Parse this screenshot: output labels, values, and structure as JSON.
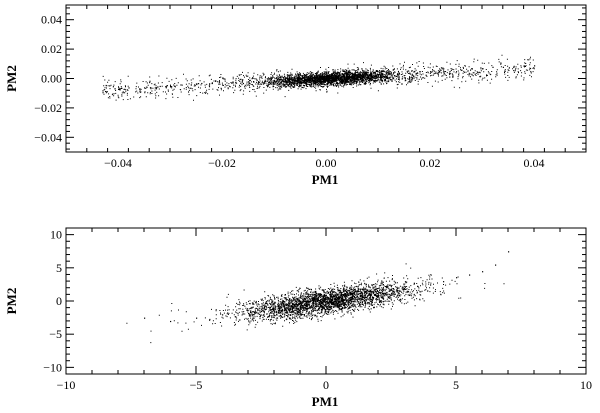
{
  "chart_data": [
    {
      "type": "scatter",
      "xlabel": "PM1",
      "ylabel": "PM2",
      "xlim": [
        -0.05,
        0.05
      ],
      "ylim": [
        -0.05,
        0.05
      ],
      "xticks": [
        -0.04,
        -0.02,
        0.0,
        0.02,
        0.04
      ],
      "yticks": [
        -0.04,
        -0.02,
        0.0,
        0.02,
        0.04
      ],
      "xticklabels": [
        "−0.04",
        "−0.02",
        "0.00",
        "0.02",
        "0.04"
      ],
      "yticklabels": [
        "−0.04",
        "−0.02",
        "0.00",
        "0.02",
        "0.04"
      ],
      "grid": false,
      "color": "#000000",
      "series": [
        {
          "x": [
            -0.043,
            -0.04,
            -0.038,
            -0.035,
            -0.032,
            -0.03,
            -0.028,
            -0.026,
            -0.024,
            -0.022,
            -0.02,
            -0.018,
            -0.016,
            -0.014,
            -0.012,
            -0.01,
            -0.008,
            -0.006,
            -0.004,
            -0.002,
            0.0,
            0.002,
            0.004,
            0.006,
            0.008,
            0.01,
            0.012,
            0.014,
            0.016,
            0.018,
            0.02,
            0.022,
            0.024,
            0.026,
            0.028,
            0.03,
            0.032,
            0.034,
            0.036,
            0.038,
            0.04
          ],
          "y": [
            -0.008,
            -0.007,
            -0.006,
            -0.006,
            -0.005,
            -0.005,
            -0.004,
            -0.004,
            -0.003,
            -0.003,
            -0.004,
            -0.002,
            -0.003,
            -0.002,
            -0.003,
            -0.001,
            -0.002,
            -0.001,
            -0.001,
            0.0,
            0.0,
            0.001,
            0.001,
            0.002,
            0.002,
            0.003,
            0.003,
            0.004,
            0.004,
            0.005,
            0.005,
            0.006,
            0.006,
            0.006,
            0.007,
            0.007,
            0.008,
            0.008,
            0.008,
            0.009,
            0.009
          ]
        }
      ]
    },
    {
      "type": "scatter",
      "xlabel": "PM1",
      "ylabel": "PM2",
      "xlim": [
        -10,
        10
      ],
      "ylim": [
        -11,
        11
      ],
      "xticks": [
        -10,
        -5,
        0,
        5,
        10
      ],
      "yticks": [
        -10,
        -5,
        0,
        5,
        10
      ],
      "xticklabels": [
        "−10",
        "−5",
        "0",
        "5",
        "10"
      ],
      "yticklabels": [
        "−10",
        "−5",
        "0",
        "5",
        "10"
      ],
      "grid": false,
      "color": "#000000",
      "series": [
        {
          "x": [
            -7.0,
            -6.0,
            -5.0,
            -4.5,
            -4.0,
            -3.5,
            -3.0,
            -2.5,
            -2.0,
            -1.5,
            -1.0,
            -0.5,
            0.0,
            0.5,
            1.0,
            1.5,
            2.0,
            2.5,
            3.0,
            3.5,
            4.0,
            4.5,
            5.0,
            5.5,
            6.0,
            6.5,
            7.0
          ],
          "y": [
            -2.5,
            -3.0,
            -2.5,
            -2.8,
            -2.0,
            -2.3,
            -1.8,
            -1.5,
            -1.6,
            -1.0,
            -0.8,
            -0.3,
            0.0,
            0.4,
            0.8,
            1.0,
            1.3,
            1.8,
            2.0,
            2.3,
            2.5,
            3.0,
            3.6,
            4.0,
            4.5,
            5.5,
            7.5
          ]
        }
      ]
    }
  ]
}
